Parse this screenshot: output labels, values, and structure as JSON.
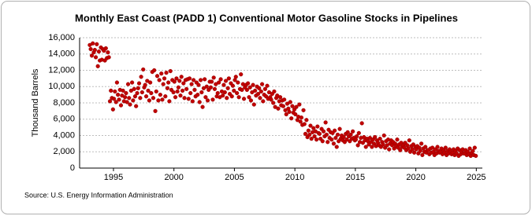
{
  "chart_data": {
    "type": "scatter",
    "title": "Monthly East Coast (PADD 1) Conventional Motor Gasoline Stocks in Pipelines",
    "y_label": "Thousand Barrels",
    "source": "Source: U.S. Energy Information Administration",
    "color": "#c00000",
    "grid": true,
    "xlim": [
      1992.2,
      2025.5
    ],
    "xticks": [
      1995,
      2000,
      2005,
      2010,
      2015,
      2020,
      2025
    ],
    "ylim": [
      0,
      16000
    ],
    "yticks": [
      0,
      {
        "value": 2000,
        "label": "2,000"
      },
      {
        "value": 4000,
        "label": "4,000"
      },
      {
        "value": 6000,
        "label": "6,000"
      },
      {
        "value": 8000,
        "label": "8,000"
      },
      {
        "value": 10000,
        "label": "10,000"
      },
      {
        "value": 12000,
        "label": "12,000"
      },
      {
        "value": 14000,
        "label": "14,000"
      },
      {
        "value": 16000,
        "label": "16,000"
      }
    ],
    "x": [
      1993.04,
      1993.12,
      1993.21,
      1993.29,
      1993.37,
      1993.46,
      1993.54,
      1993.62,
      1993.71,
      1993.79,
      1993.87,
      1993.96,
      1994.04,
      1994.12,
      1994.21,
      1994.29,
      1994.37,
      1994.46,
      1994.54,
      1994.62,
      1994.71,
      1994.79,
      1994.87,
      1994.96,
      1995.04,
      1995.12,
      1995.21,
      1995.29,
      1995.37,
      1995.46,
      1995.54,
      1995.62,
      1995.71,
      1995.79,
      1995.87,
      1995.96,
      1996.04,
      1996.12,
      1996.21,
      1996.29,
      1996.37,
      1996.46,
      1996.54,
      1996.62,
      1996.71,
      1996.79,
      1996.87,
      1996.96,
      1997.04,
      1997.12,
      1997.21,
      1997.29,
      1997.37,
      1997.46,
      1997.54,
      1997.62,
      1997.71,
      1997.79,
      1997.87,
      1997.96,
      1998.04,
      1998.12,
      1998.21,
      1998.29,
      1998.37,
      1998.46,
      1998.54,
      1998.62,
      1998.71,
      1998.79,
      1998.87,
      1998.96,
      1999.04,
      1999.12,
      1999.21,
      1999.29,
      1999.37,
      1999.46,
      1999.54,
      1999.62,
      1999.71,
      1999.79,
      1999.87,
      1999.96,
      2000.04,
      2000.12,
      2000.21,
      2000.29,
      2000.37,
      2000.46,
      2000.54,
      2000.62,
      2000.71,
      2000.79,
      2000.87,
      2000.96,
      2001.04,
      2001.12,
      2001.21,
      2001.29,
      2001.37,
      2001.46,
      2001.54,
      2001.62,
      2001.71,
      2001.79,
      2001.87,
      2001.96,
      2002.04,
      2002.12,
      2002.21,
      2002.29,
      2002.37,
      2002.46,
      2002.54,
      2002.62,
      2002.71,
      2002.79,
      2002.87,
      2002.96,
      2003.04,
      2003.12,
      2003.21,
      2003.29,
      2003.37,
      2003.46,
      2003.54,
      2003.62,
      2003.71,
      2003.79,
      2003.87,
      2003.96,
      2004.04,
      2004.12,
      2004.21,
      2004.29,
      2004.37,
      2004.46,
      2004.54,
      2004.62,
      2004.71,
      2004.79,
      2004.87,
      2004.96,
      2005.04,
      2005.12,
      2005.21,
      2005.29,
      2005.37,
      2005.46,
      2005.54,
      2005.62,
      2005.71,
      2005.79,
      2005.87,
      2005.96,
      2006.04,
      2006.12,
      2006.21,
      2006.29,
      2006.37,
      2006.46,
      2006.54,
      2006.62,
      2006.71,
      2006.79,
      2006.87,
      2006.96,
      2007.04,
      2007.12,
      2007.21,
      2007.29,
      2007.37,
      2007.46,
      2007.54,
      2007.62,
      2007.71,
      2007.79,
      2007.87,
      2007.96,
      2008.04,
      2008.12,
      2008.21,
      2008.29,
      2008.37,
      2008.46,
      2008.54,
      2008.62,
      2008.71,
      2008.79,
      2008.87,
      2008.96,
      2009.04,
      2009.12,
      2009.21,
      2009.29,
      2009.37,
      2009.46,
      2009.54,
      2009.62,
      2009.71,
      2009.79,
      2009.87,
      2009.96,
      2010.04,
      2010.12,
      2010.21,
      2010.29,
      2010.37,
      2010.46,
      2010.54,
      2010.62,
      2010.71,
      2010.79,
      2010.87,
      2010.96,
      2011.04,
      2011.12,
      2011.21,
      2011.29,
      2011.37,
      2011.46,
      2011.54,
      2011.62,
      2011.71,
      2011.79,
      2011.87,
      2011.96,
      2012.04,
      2012.12,
      2012.21,
      2012.29,
      2012.37,
      2012.46,
      2012.54,
      2012.62,
      2012.71,
      2012.79,
      2012.87,
      2012.96,
      2013.04,
      2013.12,
      2013.21,
      2013.29,
      2013.37,
      2013.46,
      2013.54,
      2013.62,
      2013.71,
      2013.79,
      2013.87,
      2013.96,
      2014.04,
      2014.12,
      2014.21,
      2014.29,
      2014.37,
      2014.46,
      2014.54,
      2014.62,
      2014.71,
      2014.79,
      2014.87,
      2014.96,
      2015.04,
      2015.12,
      2015.21,
      2015.29,
      2015.37,
      2015.46,
      2015.54,
      2015.62,
      2015.71,
      2015.79,
      2015.87,
      2015.96,
      2016.04,
      2016.12,
      2016.21,
      2016.29,
      2016.37,
      2016.46,
      2016.54,
      2016.62,
      2016.71,
      2016.79,
      2016.87,
      2016.96,
      2017.04,
      2017.12,
      2017.21,
      2017.29,
      2017.37,
      2017.46,
      2017.54,
      2017.62,
      2017.71,
      2017.79,
      2017.87,
      2017.96,
      2018.04,
      2018.12,
      2018.21,
      2018.29,
      2018.37,
      2018.46,
      2018.54,
      2018.62,
      2018.71,
      2018.79,
      2018.87,
      2018.96,
      2019.04,
      2019.12,
      2019.21,
      2019.29,
      2019.37,
      2019.46,
      2019.54,
      2019.62,
      2019.71,
      2019.79,
      2019.87,
      2019.96,
      2020.04,
      2020.12,
      2020.21,
      2020.29,
      2020.37,
      2020.46,
      2020.54,
      2020.62,
      2020.71,
      2020.79,
      2020.87,
      2020.96,
      2021.04,
      2021.12,
      2021.21,
      2021.29,
      2021.37,
      2021.46,
      2021.54,
      2021.62,
      2021.71,
      2021.79,
      2021.87,
      2021.96,
      2022.04,
      2022.12,
      2022.21,
      2022.29,
      2022.37,
      2022.46,
      2022.54,
      2022.62,
      2022.71,
      2022.79,
      2022.87,
      2022.96,
      2023.04,
      2023.12,
      2023.21,
      2023.29,
      2023.37,
      2023.46,
      2023.54,
      2023.62,
      2023.71,
      2023.79,
      2023.87,
      2023.96,
      2024.04,
      2024.12,
      2024.21,
      2024.29,
      2024.37,
      2024.46,
      2024.54,
      2024.62,
      2024.71,
      2024.79,
      2024.87,
      2024.96
    ],
    "values": [
      15100,
      14600,
      13800,
      15300,
      14200,
      14500,
      13600,
      15200,
      12500,
      14300,
      13200,
      14800,
      13300,
      14600,
      14400,
      13200,
      14700,
      13500,
      14200,
      13600,
      8200,
      9500,
      8600,
      7200,
      8500,
      9400,
      8100,
      10500,
      9000,
      8400,
      9600,
      7700,
      8900,
      9500,
      8200,
      8700,
      9200,
      8100,
      10300,
      8600,
      7800,
      9500,
      10500,
      8300,
      9700,
      8800,
      7600,
      9200,
      9800,
      10400,
      8600,
      11200,
      9300,
      12100,
      9900,
      10200,
      8800,
      10700,
      9500,
      8300,
      10500,
      9200,
      11800,
      8600,
      12000,
      7000,
      9400,
      11300,
      8300,
      10800,
      9000,
      11600,
      8400,
      10300,
      11000,
      8800,
      11700,
      9800,
      10500,
      8200,
      11900,
      9600,
      10800,
      9300,
      10600,
      8700,
      11000,
      9400,
      9900,
      10700,
      8900,
      11200,
      9500,
      10400,
      8600,
      10800,
      9700,
      10900,
      8500,
      11000,
      9200,
      10300,
      8200,
      10800,
      9600,
      8800,
      10500,
      9000,
      10200,
      8100,
      10800,
      9300,
      7500,
      9800,
      10900,
      8700,
      10000,
      8300,
      9600,
      10600,
      9900,
      10600,
      8400,
      11100,
      9700,
      10300,
      8800,
      9200,
      10500,
      8700,
      10900,
      9400,
      8900,
      10200,
      9300,
      10700,
      8600,
      9800,
      11000,
      9100,
      10400,
      8800,
      10100,
      9500,
      10800,
      11200,
      9200,
      10500,
      8700,
      9700,
      11500,
      9600,
      10300,
      8500,
      9900,
      10200,
      9600,
      10400,
      8700,
      9900,
      8300,
      9300,
      10200,
      7800,
      9500,
      8900,
      10000,
      9100,
      9800,
      8600,
      9400,
      10300,
      8200,
      9000,
      9700,
      8800,
      10100,
      8500,
      9300,
      8700,
      8400,
      9100,
      8000,
      9400,
      7500,
      8600,
      8900,
      7300,
      8200,
      8700,
      7700,
      8300,
      7600,
      8400,
      7100,
      6600,
      7900,
      7300,
      6900,
      8100,
      6100,
      7600,
      6800,
      7200,
      6600,
      7500,
      5900,
      6300,
      7800,
      5700,
      6200,
      5300,
      7100,
      5400,
      4200,
      5900,
      3800,
      4600,
      4100,
      5200,
      3600,
      4400,
      4900,
      3900,
      4500,
      3500,
      5100,
      4300,
      4200,
      3600,
      4800,
      3300,
      4500,
      3900,
      5600,
      4100,
      3200,
      4700,
      3700,
      4400,
      3500,
      4300,
      3000,
      4600,
      3700,
      2600,
      4100,
      3300,
      4800,
      3600,
      4000,
      3400,
      3800,
      3200,
      4200,
      3500,
      4400,
      3900,
      3300,
      4100,
      3600,
      4500,
      3700,
      3400,
      3500,
      3900,
      2800,
      4300,
      3200,
      3700,
      5500,
      3100,
      3800,
      3400,
      2600,
      3600,
      3300,
      2900,
      3700,
      3200,
      2600,
      3500,
      3000,
      3800,
      2700,
      3400,
      3100,
      2800,
      3600,
      2600,
      3200,
      2900,
      4000,
      2500,
      3300,
      2800,
      3500,
      2300,
      3000,
      3400,
      2800,
      3200,
      2400,
      3000,
      2700,
      3500,
      2500,
      2900,
      2200,
      3100,
      2600,
      2800,
      2500,
      3100,
      2200,
      2800,
      2400,
      3400,
      2000,
      2700,
      2300,
      2900,
      1900,
      2600,
      2300,
      2700,
      1800,
      2500,
      2100,
      3000,
      1600,
      2400,
      2000,
      2600,
      1900,
      2200,
      2200,
      1700,
      2400,
      1900,
      2500,
      2000,
      1600,
      2300,
      1800,
      2600,
      2100,
      1900,
      2000,
      2400,
      1700,
      2200,
      1900,
      2500,
      1600,
      2100,
      1800,
      2300,
      2000,
      1700,
      1900,
      2300,
      1600,
      2100,
      1800,
      2400,
      1500,
      2200,
      1700,
      2000,
      2300,
      1800,
      1800,
      2200,
      1600,
      2000,
      1700,
      2400,
      1500,
      1900,
      2100,
      1600,
      2500,
      1500
    ]
  }
}
